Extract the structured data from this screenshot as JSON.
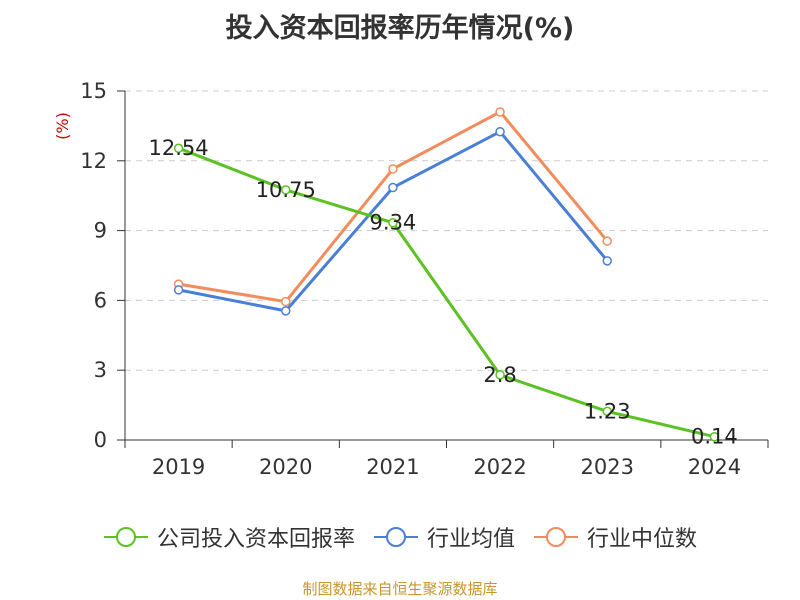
{
  "title": "投入资本回报率历年情况(%)",
  "source": "制图数据来自恒生聚源数据库",
  "colors": {
    "series": [
      "#5cc224",
      "#4a7fd6",
      "#f28c5c"
    ],
    "axis": "#333333",
    "grid": "#cccccc",
    "ylabel": "#cc0000"
  },
  "chart_data": {
    "type": "line",
    "title": "投入资本回报率历年情况(%)",
    "xlabel": "",
    "ylabel": "(%)",
    "x": [
      "2019",
      "2020",
      "2021",
      "2022",
      "2023",
      "2024"
    ],
    "ylim": [
      0,
      15
    ],
    "yticks": [
      0,
      3,
      6,
      9,
      12,
      15
    ],
    "grid": true,
    "legend_position": "bottom",
    "series": [
      {
        "name": "公司投入资本回报率",
        "values": [
          12.54,
          10.75,
          9.34,
          2.8,
          1.23,
          0.14
        ],
        "labels": [
          "12.54",
          "10.75",
          "9.34",
          "2.8",
          "1.23",
          "0.14"
        ]
      },
      {
        "name": "行业均值",
        "values": [
          6.45,
          5.55,
          10.85,
          13.25,
          7.7,
          null
        ]
      },
      {
        "name": "行业中位数",
        "values": [
          6.7,
          5.95,
          11.65,
          14.1,
          8.55,
          null
        ]
      }
    ]
  }
}
